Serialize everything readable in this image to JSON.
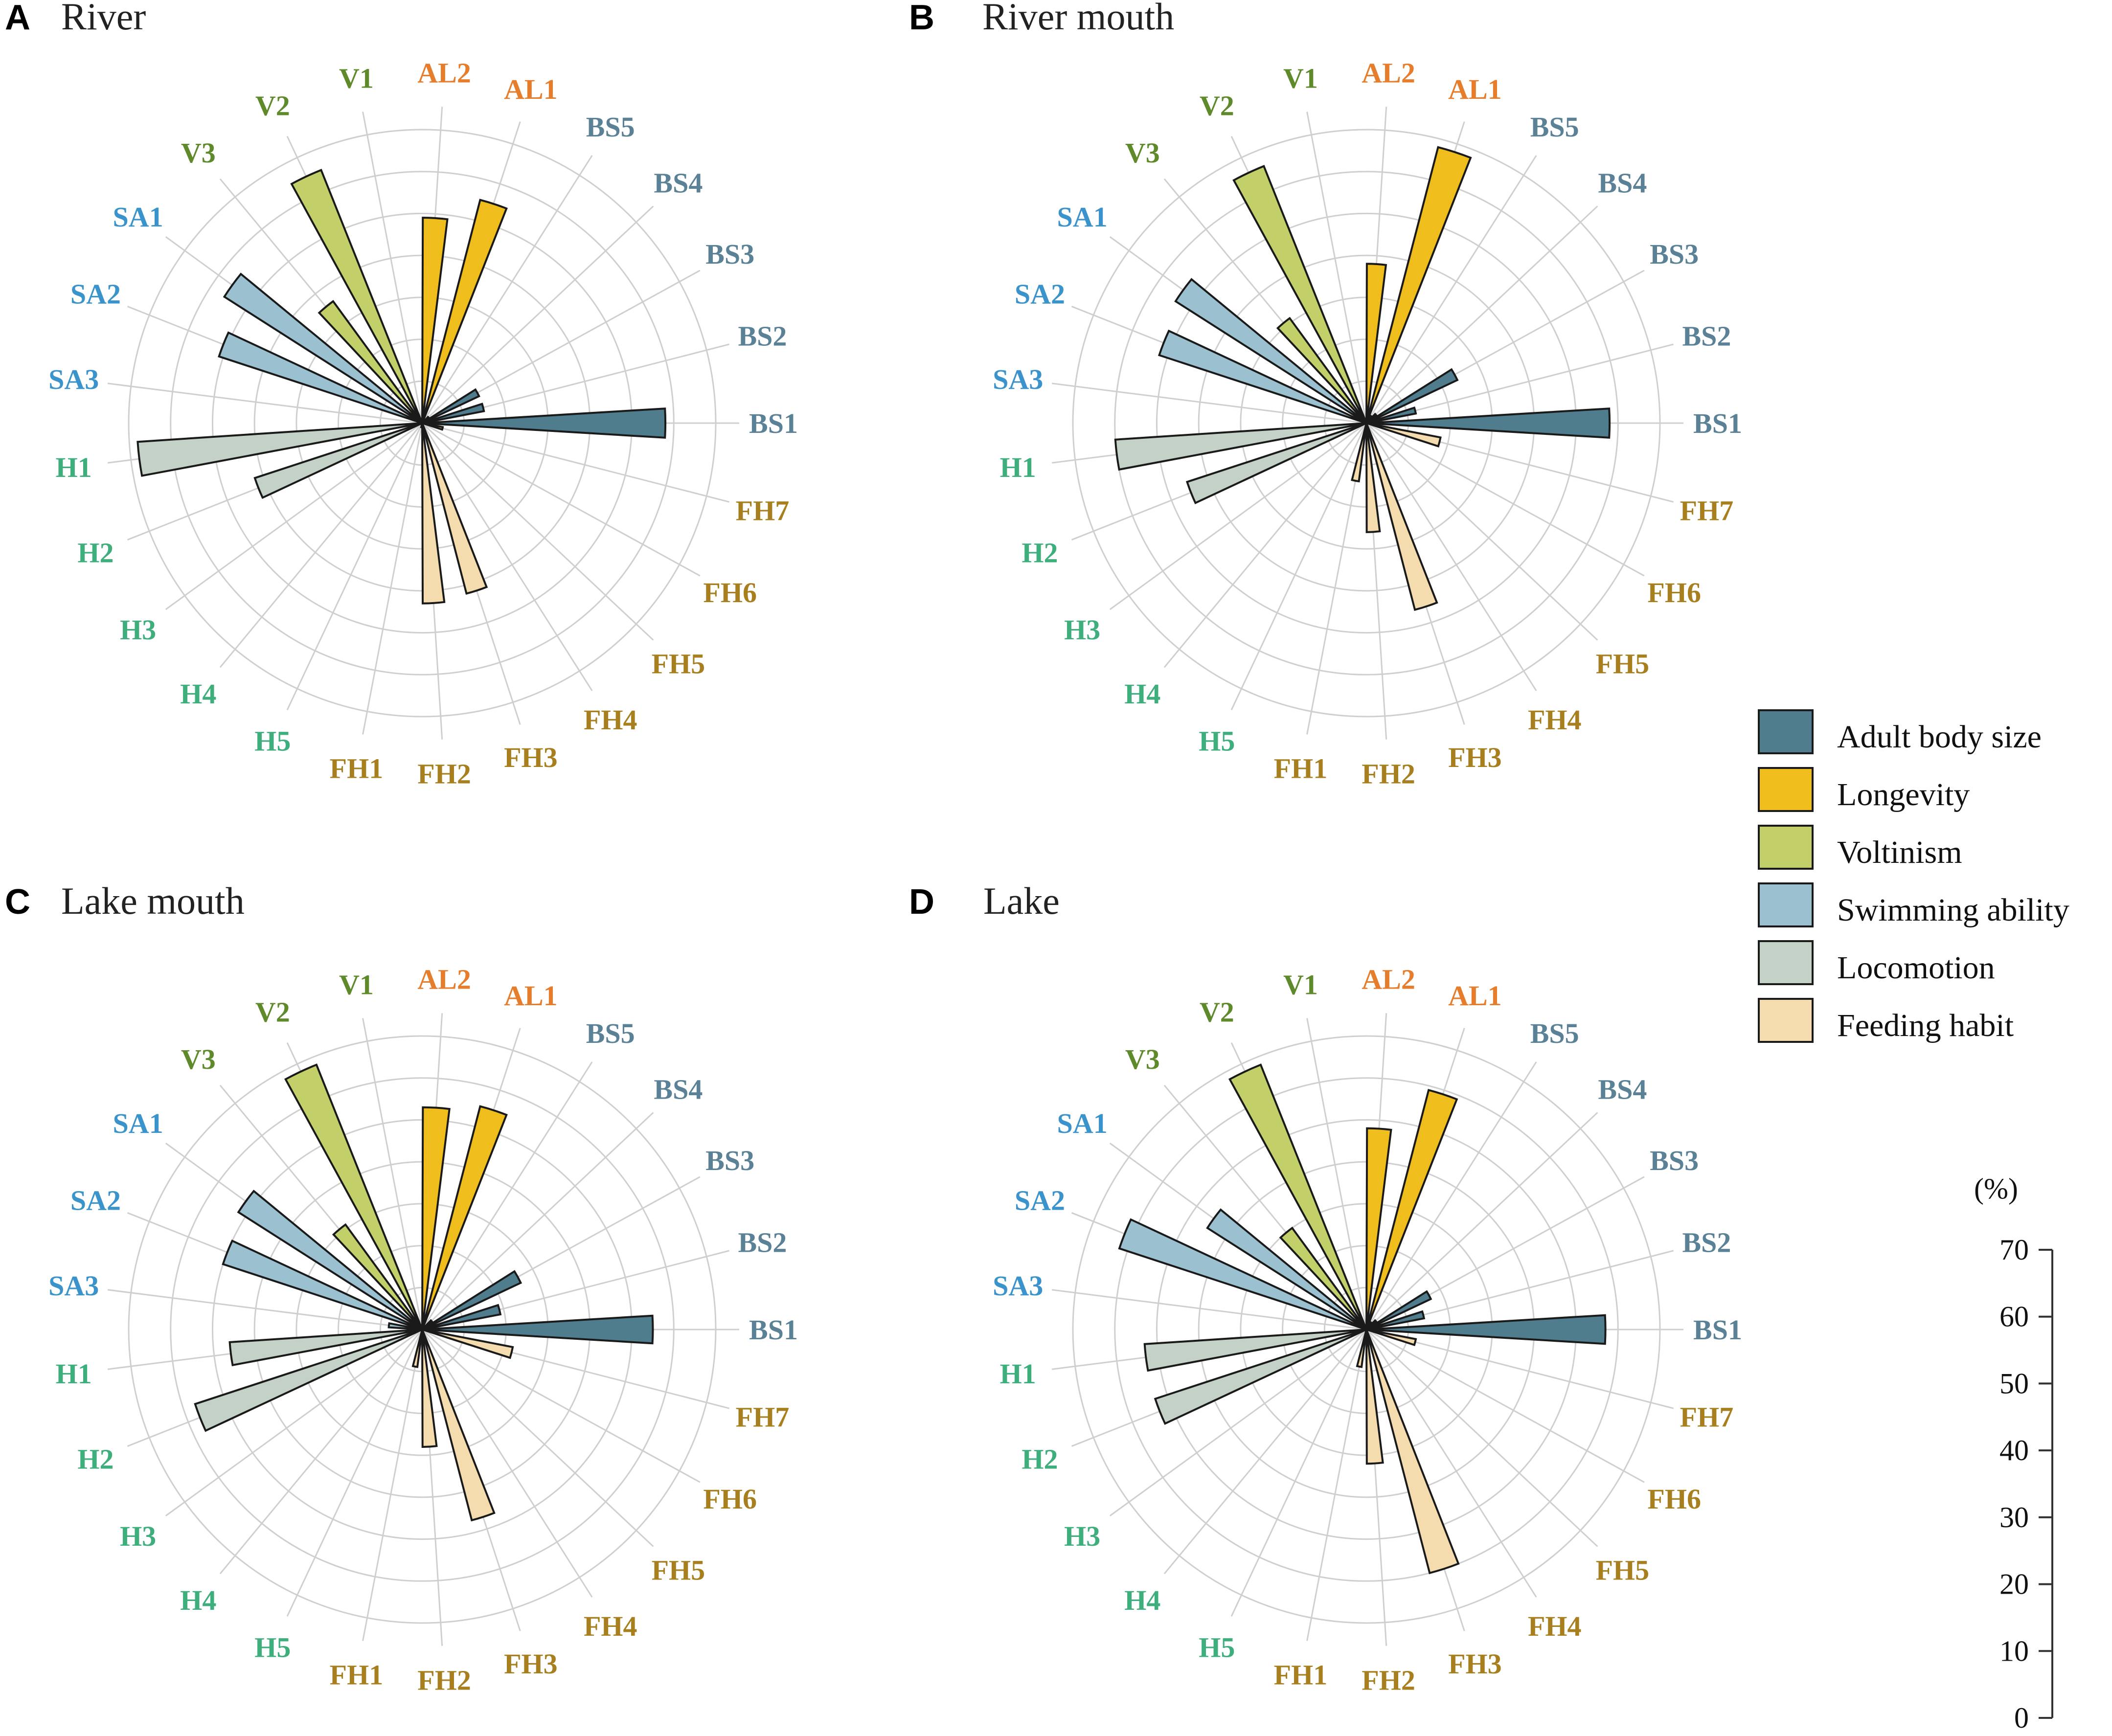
{
  "unit_label": "(%)",
  "scale_ticks": [
    0,
    10,
    20,
    30,
    40,
    50,
    60,
    70
  ],
  "legend": [
    {
      "group": "BS",
      "label": "Adult body size",
      "color": "#4f7d8e"
    },
    {
      "group": "AL",
      "label": "Longevity",
      "color": "#f0be1c"
    },
    {
      "group": "V",
      "label": "Voltinism",
      "color": "#c3cf68"
    },
    {
      "group": "SA",
      "label": "Swimming ability",
      "color": "#9bc1d0"
    },
    {
      "group": "H",
      "label": "Locomotion",
      "color": "#c3d1c6"
    },
    {
      "group": "FH",
      "label": "Feeding habit",
      "color": "#f5dcaf"
    }
  ],
  "label_colors": {
    "BS": "#5a8196",
    "AL": "#e67d2c",
    "V": "#5f8a2b",
    "SA": "#3b93cc",
    "H": "#3fae7d",
    "FH": "#a87f1f"
  },
  "chart_data": {
    "type": "polar-bar",
    "unit": "%",
    "rmax": 70,
    "categories": [
      "BS1",
      "BS2",
      "BS3",
      "BS4",
      "BS5",
      "AL1",
      "AL2",
      "V1",
      "V2",
      "V3",
      "SA1",
      "SA2",
      "SA3",
      "H1",
      "H2",
      "H3",
      "H4",
      "H5",
      "FH1",
      "FH2",
      "FH3",
      "FH4",
      "FH5",
      "FH6",
      "FH7"
    ],
    "panels": [
      {
        "letter": "A",
        "title": "River",
        "values": {
          "BS1": 58,
          "BS2": 15,
          "BS3": 15,
          "BS4": 2,
          "BS5": 1,
          "AL1": 55,
          "AL2": 49,
          "V1": 0,
          "V2": 65,
          "V3": 36,
          "SA1": 56,
          "SA2": 51,
          "SA3": 0,
          "H1": 68,
          "H2": 42,
          "H3": 0,
          "H4": 0,
          "H5": 0,
          "FH1": 1,
          "FH2": 43,
          "FH3": 42,
          "FH4": 0,
          "FH5": 0,
          "FH6": 0,
          "FH7": 5
        }
      },
      {
        "letter": "B",
        "title": "River mouth",
        "values": {
          "BS1": 58,
          "BS2": 12,
          "BS3": 24,
          "BS4": 3,
          "BS5": 2,
          "AL1": 68,
          "AL2": 38,
          "V1": 0,
          "V2": 66,
          "V3": 31,
          "SA1": 54,
          "SA2": 52,
          "SA3": 0,
          "H1": 60,
          "H2": 45,
          "H3": 0,
          "H4": 0,
          "H5": 0,
          "FH1": 14,
          "FH2": 26,
          "FH3": 46,
          "FH4": 0,
          "FH5": 0,
          "FH6": 0,
          "FH7": 18
        }
      },
      {
        "letter": "C",
        "title": "Lake mouth",
        "values": {
          "BS1": 55,
          "BS2": 19,
          "BS3": 26,
          "BS4": 3,
          "BS5": 1,
          "AL1": 55,
          "AL2": 53,
          "V1": 0,
          "V2": 68,
          "V3": 31,
          "SA1": 52,
          "SA2": 50,
          "SA3": 8,
          "H1": 46,
          "H2": 57,
          "H3": 0,
          "H4": 0,
          "H5": 0,
          "FH1": 9,
          "FH2": 28,
          "FH3": 47,
          "FH4": 0,
          "FH5": 0,
          "FH6": 0,
          "FH7": 22
        }
      },
      {
        "letter": "D",
        "title": "Lake",
        "values": {
          "BS1": 57,
          "BS2": 14,
          "BS3": 17,
          "BS4": 3,
          "BS5": 2,
          "AL1": 59,
          "AL2": 48,
          "V1": 0,
          "V2": 68,
          "V3": 30,
          "SA1": 45,
          "SA2": 62,
          "SA3": 0,
          "H1": 53,
          "H2": 53,
          "H3": 0,
          "H4": 0,
          "H5": 0,
          "FH1": 9,
          "FH2": 32,
          "FH3": 60,
          "FH4": 0,
          "FH5": 0,
          "FH6": 0,
          "FH7": 12
        }
      }
    ]
  }
}
